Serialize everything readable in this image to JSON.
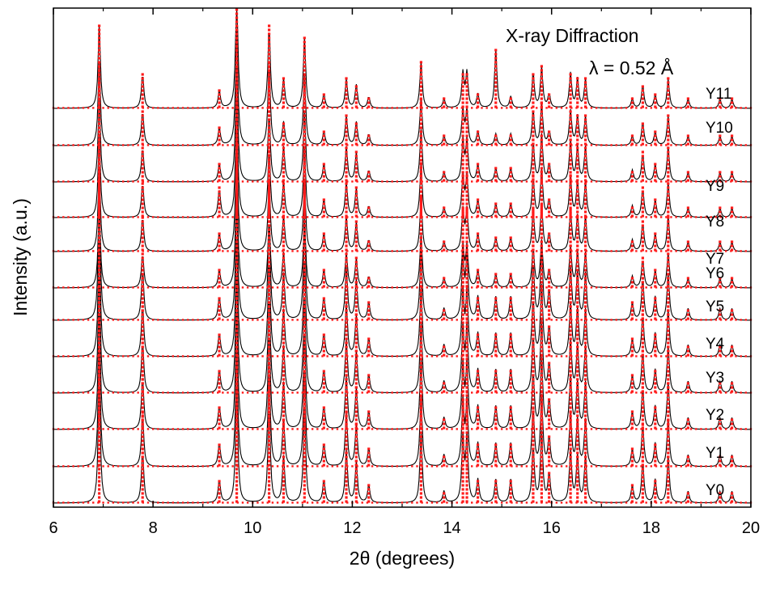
{
  "chart_data": {
    "type": "line",
    "annotations": [
      "X-ray Diffraction",
      "λ = 0.52 Å"
    ],
    "xlabel": "2θ (degrees)",
    "ylabel": "Intensity (a.u.)",
    "xlim": [
      6,
      20
    ],
    "x_ticks": [
      "6",
      "8",
      "10",
      "12",
      "14",
      "16",
      "18",
      "20"
    ],
    "legend": "none",
    "grid": false,
    "series_style": {
      "observed": "red dots",
      "calculated": "black line"
    },
    "peaks_2theta": [
      6.92,
      7.79,
      9.33,
      9.68,
      10.33,
      10.62,
      11.04,
      11.43,
      11.88,
      12.08,
      12.33,
      13.38,
      13.84,
      14.22,
      14.3,
      14.52,
      14.88,
      15.18,
      15.63,
      15.8,
      15.95,
      16.38,
      16.52,
      16.68,
      17.62,
      17.83,
      18.08,
      18.34,
      18.74,
      19.38,
      19.62
    ],
    "series": [
      {
        "name": "Y0",
        "peak_heights": [
          1.0,
          0.45,
          0.2,
          1.0,
          0.85,
          0.4,
          0.8,
          0.2,
          0.45,
          0.35,
          0.15,
          0.6,
          0.1,
          0.55,
          0.55,
          0.2,
          0.2,
          0.2,
          0.5,
          0.6,
          0.25,
          0.45,
          0.4,
          0.4,
          0.15,
          0.35,
          0.2,
          0.4,
          0.1,
          0.1,
          0.1
        ]
      },
      {
        "name": "Y1",
        "peak_heights": [
          1.0,
          0.45,
          0.2,
          1.0,
          0.85,
          0.4,
          0.8,
          0.2,
          0.45,
          0.35,
          0.15,
          0.6,
          0.1,
          0.55,
          0.55,
          0.2,
          0.2,
          0.2,
          0.5,
          0.6,
          0.25,
          0.45,
          0.4,
          0.4,
          0.15,
          0.35,
          0.2,
          0.4,
          0.1,
          0.1,
          0.1
        ]
      },
      {
        "name": "Y2",
        "peak_heights": [
          1.0,
          0.45,
          0.2,
          1.0,
          0.85,
          0.4,
          0.8,
          0.2,
          0.45,
          0.35,
          0.15,
          0.6,
          0.1,
          0.55,
          0.55,
          0.2,
          0.2,
          0.2,
          0.5,
          0.6,
          0.25,
          0.45,
          0.4,
          0.4,
          0.15,
          0.35,
          0.2,
          0.4,
          0.1,
          0.1,
          0.1
        ]
      },
      {
        "name": "Y3",
        "peak_heights": [
          1.0,
          0.45,
          0.2,
          1.0,
          0.85,
          0.4,
          0.8,
          0.2,
          0.45,
          0.35,
          0.15,
          0.6,
          0.1,
          0.55,
          0.55,
          0.2,
          0.2,
          0.2,
          0.5,
          0.6,
          0.25,
          0.45,
          0.4,
          0.4,
          0.15,
          0.35,
          0.2,
          0.4,
          0.1,
          0.1,
          0.1
        ]
      },
      {
        "name": "Y4",
        "peak_heights": [
          1.0,
          0.45,
          0.2,
          1.0,
          0.85,
          0.4,
          0.8,
          0.2,
          0.45,
          0.35,
          0.15,
          0.6,
          0.1,
          0.55,
          0.55,
          0.2,
          0.2,
          0.2,
          0.5,
          0.6,
          0.25,
          0.45,
          0.4,
          0.4,
          0.15,
          0.35,
          0.2,
          0.4,
          0.1,
          0.1,
          0.1
        ]
      },
      {
        "name": "Y5",
        "peak_heights": [
          1.0,
          0.45,
          0.2,
          1.0,
          0.85,
          0.4,
          0.8,
          0.2,
          0.45,
          0.35,
          0.15,
          0.6,
          0.1,
          0.55,
          0.55,
          0.2,
          0.2,
          0.2,
          0.5,
          0.6,
          0.25,
          0.45,
          0.4,
          0.4,
          0.15,
          0.35,
          0.2,
          0.4,
          0.1,
          0.1,
          0.1
        ]
      },
      {
        "name": "Y6",
        "peak_heights": [
          0.7,
          0.3,
          0.15,
          1.0,
          0.6,
          0.3,
          0.6,
          0.15,
          0.3,
          0.25,
          0.1,
          0.45,
          0.08,
          0.35,
          0.35,
          0.15,
          0.12,
          0.12,
          0.35,
          0.4,
          0.15,
          0.35,
          0.3,
          0.3,
          0.1,
          0.25,
          0.15,
          0.3,
          0.08,
          0.08,
          0.08
        ]
      },
      {
        "name": "Y7",
        "peak_heights": [
          0.7,
          0.3,
          0.15,
          1.0,
          0.6,
          0.3,
          0.6,
          0.15,
          0.3,
          0.25,
          0.1,
          0.45,
          0.08,
          0.35,
          0.35,
          0.15,
          0.12,
          0.12,
          0.35,
          0.4,
          0.15,
          0.35,
          0.3,
          0.3,
          0.1,
          0.25,
          0.15,
          0.3,
          0.08,
          0.08,
          0.08
        ]
      },
      {
        "name": "Y8",
        "peak_heights": [
          0.7,
          0.3,
          0.25,
          1.0,
          0.6,
          0.3,
          0.6,
          0.15,
          0.3,
          0.25,
          0.1,
          0.45,
          0.08,
          0.35,
          0.35,
          0.15,
          0.12,
          0.12,
          0.35,
          0.4,
          0.15,
          0.35,
          0.3,
          0.3,
          0.1,
          0.25,
          0.15,
          0.3,
          0.08,
          0.08,
          0.08
        ]
      },
      {
        "name": "Y9",
        "peak_heights": [
          0.7,
          0.3,
          0.15,
          1.0,
          0.6,
          0.3,
          0.6,
          0.15,
          0.3,
          0.25,
          0.1,
          0.45,
          0.08,
          0.35,
          0.35,
          0.15,
          0.12,
          0.12,
          0.35,
          0.4,
          0.15,
          0.35,
          0.3,
          0.3,
          0.1,
          0.25,
          0.15,
          0.3,
          0.08,
          0.08,
          0.08
        ]
      },
      {
        "name": "Y10",
        "peak_heights": [
          0.7,
          0.3,
          0.15,
          1.0,
          0.7,
          0.2,
          0.6,
          0.12,
          0.25,
          0.2,
          0.1,
          0.4,
          0.08,
          0.3,
          0.3,
          0.12,
          0.1,
          0.1,
          0.3,
          0.35,
          0.12,
          0.3,
          0.25,
          0.25,
          0.08,
          0.2,
          0.12,
          0.25,
          0.08,
          0.08,
          0.08
        ]
      },
      {
        "name": "Y11",
        "peak_heights": [
          0.7,
          0.3,
          0.15,
          1.0,
          0.7,
          0.25,
          0.6,
          0.12,
          0.25,
          0.2,
          0.1,
          0.4,
          0.08,
          0.3,
          0.3,
          0.12,
          0.5,
          0.1,
          0.3,
          0.35,
          0.12,
          0.3,
          0.25,
          0.25,
          0.08,
          0.2,
          0.12,
          0.25,
          0.08,
          0.08,
          0.08
        ]
      }
    ]
  }
}
